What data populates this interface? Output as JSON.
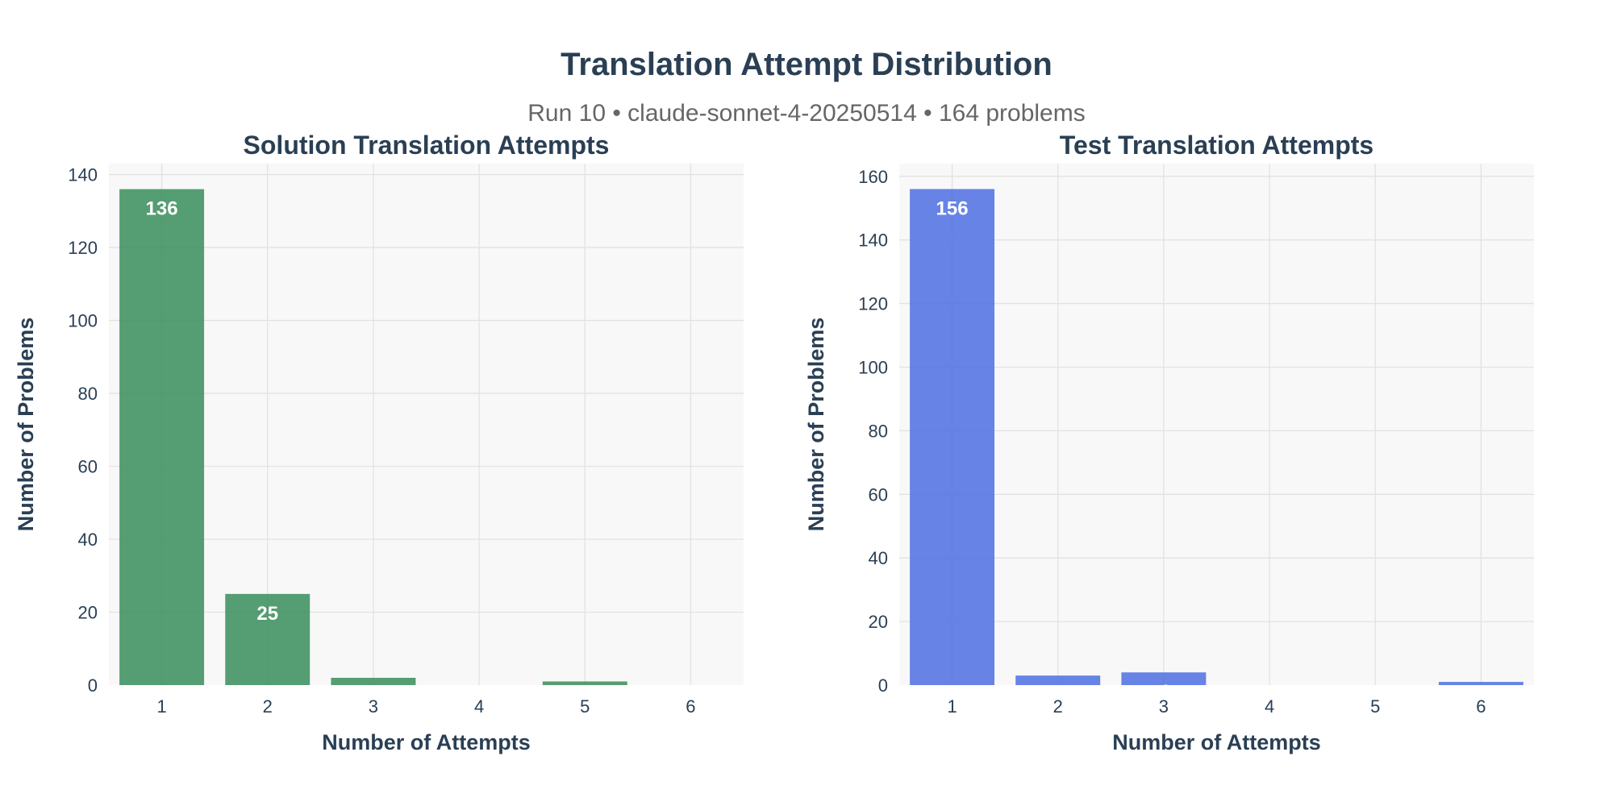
{
  "title": "Translation Attempt Distribution",
  "subtitle": "Run 10 • claude-sonnet-4-20250514 • 164 problems",
  "chart_data": [
    {
      "type": "bar",
      "title": "Solution Translation Attempts",
      "xlabel": "Number of Attempts",
      "ylabel": "Number of Problems",
      "categories": [
        "1",
        "2",
        "3",
        "4",
        "5",
        "6"
      ],
      "values": [
        136,
        25,
        2,
        0,
        1,
        0
      ],
      "ylim": [
        0,
        143
      ],
      "yticks": [
        0,
        20,
        40,
        60,
        80,
        100,
        120,
        140
      ],
      "grid": true,
      "color": "#3d8f5f"
    },
    {
      "type": "bar",
      "title": "Test Translation Attempts",
      "xlabel": "Number of Attempts",
      "ylabel": "Number of Problems",
      "categories": [
        "1",
        "2",
        "3",
        "4",
        "5",
        "6"
      ],
      "values": [
        156,
        3,
        4,
        0,
        0,
        1
      ],
      "ylim": [
        0,
        164
      ],
      "yticks": [
        0,
        20,
        40,
        60,
        80,
        100,
        120,
        140,
        160
      ],
      "grid": true,
      "color": "#5272e3"
    }
  ]
}
